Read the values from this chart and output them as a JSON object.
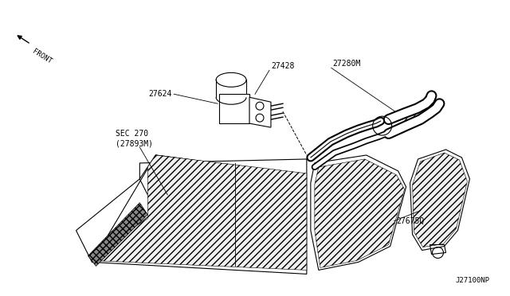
{
  "background_color": "#ffffff",
  "line_color": "#000000",
  "part_number": "J27100NP",
  "front_text": "FRONT",
  "label_27624": "27624",
  "label_27428": "27428",
  "label_27280M": "27280M",
  "label_sec270": "SEC 270\n(27893M)",
  "label_27675Q": "27675Q",
  "fig_width": 6.4,
  "fig_height": 3.72,
  "dpi": 100
}
